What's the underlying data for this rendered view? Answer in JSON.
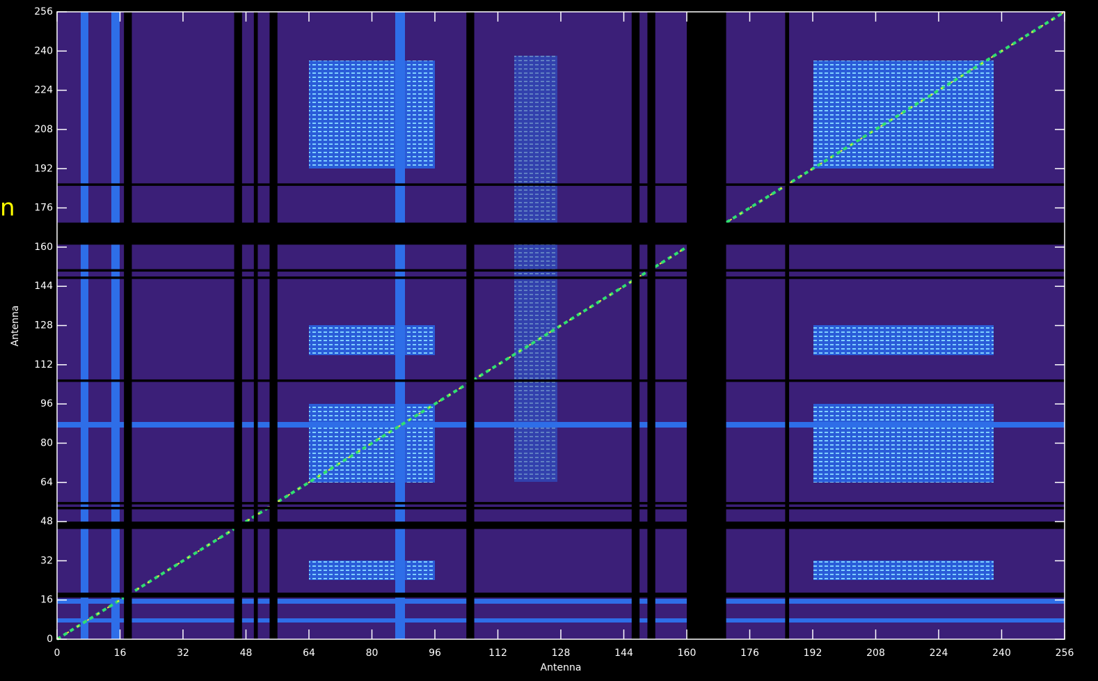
{
  "chart_data": {
    "type": "heatmap",
    "side_text": "n",
    "xlabel": "Antenna",
    "ylabel": "Antenna",
    "xlim": [
      0,
      256
    ],
    "ylim": [
      0,
      256
    ],
    "xticks": [
      0,
      16,
      32,
      48,
      64,
      80,
      96,
      112,
      128,
      144,
      160,
      176,
      192,
      208,
      224,
      240,
      256
    ],
    "yticks": [
      0,
      16,
      32,
      48,
      64,
      80,
      96,
      112,
      128,
      144,
      160,
      176,
      192,
      208,
      224,
      240,
      256
    ],
    "flagged_x": [
      [
        17,
        19
      ],
      [
        45,
        47
      ],
      [
        50,
        51
      ],
      [
        54,
        56
      ],
      [
        104,
        106
      ],
      [
        146,
        148
      ],
      [
        150,
        152
      ],
      [
        160,
        170
      ],
      [
        185,
        186
      ]
    ],
    "flagged_y": [
      [
        17,
        19
      ],
      [
        45,
        48
      ],
      [
        53,
        54
      ],
      [
        55,
        56
      ],
      [
        105,
        106
      ],
      [
        147,
        148
      ],
      [
        150,
        151
      ],
      [
        161,
        170
      ],
      [
        185,
        186
      ]
    ]
  }
}
